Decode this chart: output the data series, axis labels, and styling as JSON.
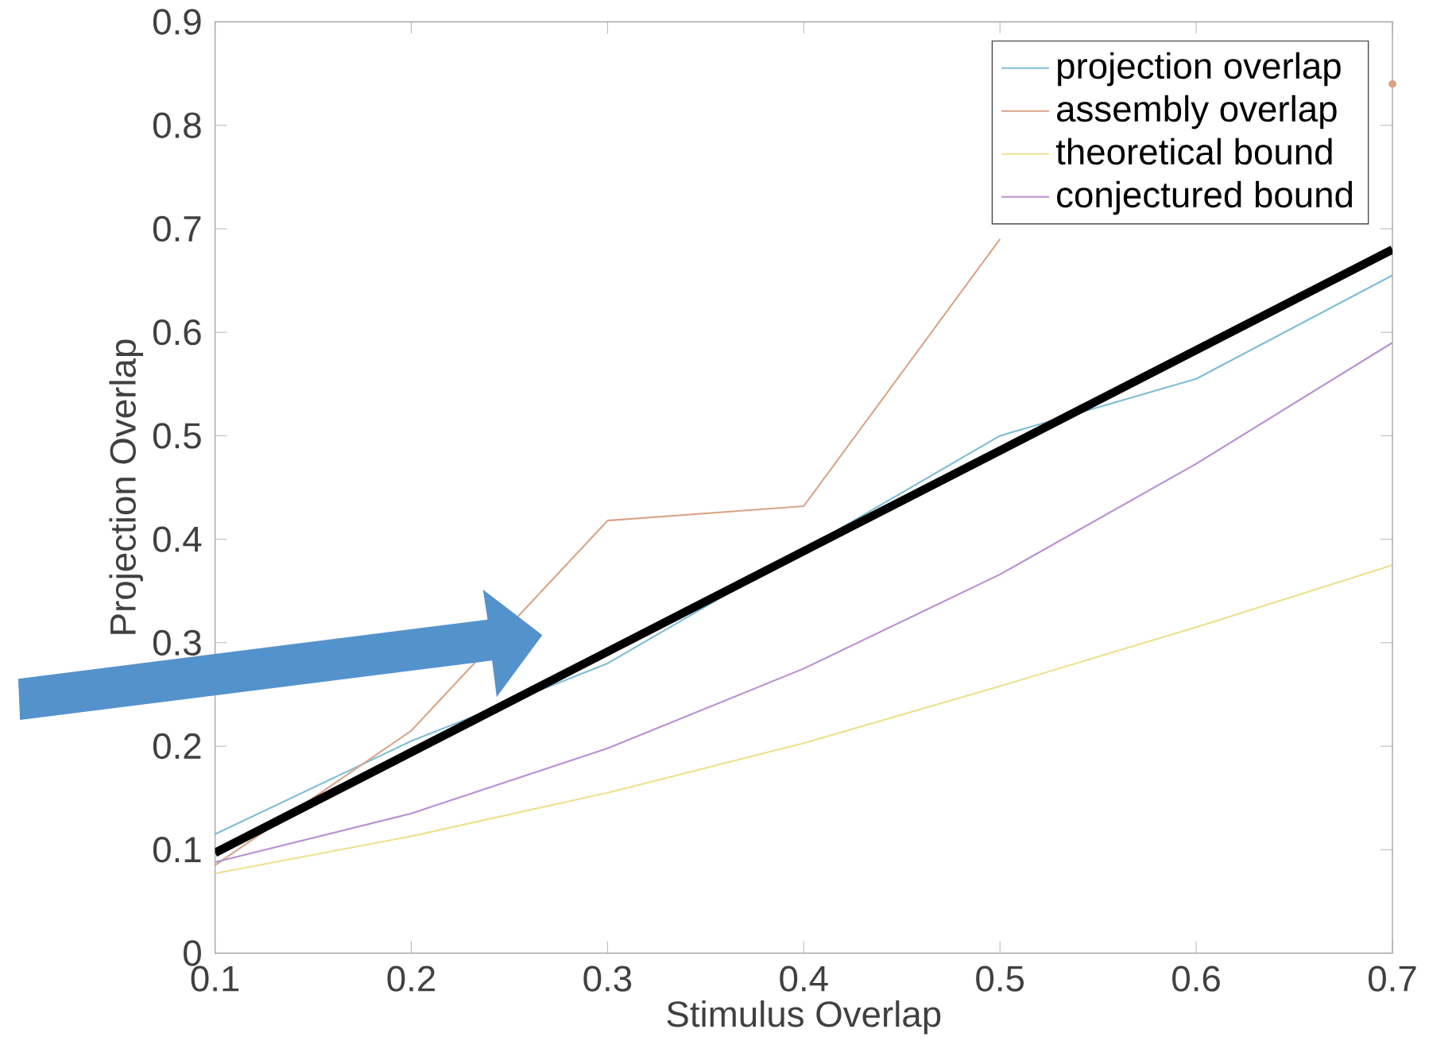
{
  "chart_data": {
    "type": "line",
    "xlabel": "Stimulus Overlap",
    "ylabel": "Projection Overlap",
    "x": [
      0.1,
      0.2,
      0.3,
      0.4,
      0.5,
      0.6,
      0.7
    ],
    "series": [
      {
        "name": "projection overlap",
        "color": "#7fbcd6",
        "values": [
          0.115,
          0.205,
          0.28,
          0.39,
          0.5,
          0.555,
          0.655
        ]
      },
      {
        "name": "assembly overlap",
        "color": "#d9a488",
        "values": [
          0.085,
          0.215,
          0.418,
          0.432,
          0.69,
          null,
          0.84
        ]
      },
      {
        "name": "theoretical bound",
        "color": "#eee08c",
        "values": [
          0.077,
          0.113,
          0.155,
          0.203,
          0.258,
          0.315,
          0.375
        ]
      },
      {
        "name": "conjectured bound",
        "color": "#b98ed4",
        "values": [
          0.088,
          0.135,
          0.198,
          0.275,
          0.366,
          0.473,
          0.59
        ]
      },
      {
        "type": "line",
        "color": "#000000",
        "x": [
          0.1,
          0.7
        ],
        "values": [
          0.097,
          0.68
        ]
      }
    ],
    "xlim": [
      0.1,
      0.7
    ],
    "ylim": [
      0,
      0.9
    ],
    "xticks": [
      0.1,
      0.2,
      0.3,
      0.4,
      0.5,
      0.6,
      0.7
    ],
    "yticks": [
      0,
      0.1,
      0.2,
      0.3,
      0.4,
      0.5,
      0.6,
      0.7,
      0.8,
      0.9
    ],
    "legend": "top right",
    "grid": false,
    "marker": "none",
    "line_style": "solid"
  }
}
